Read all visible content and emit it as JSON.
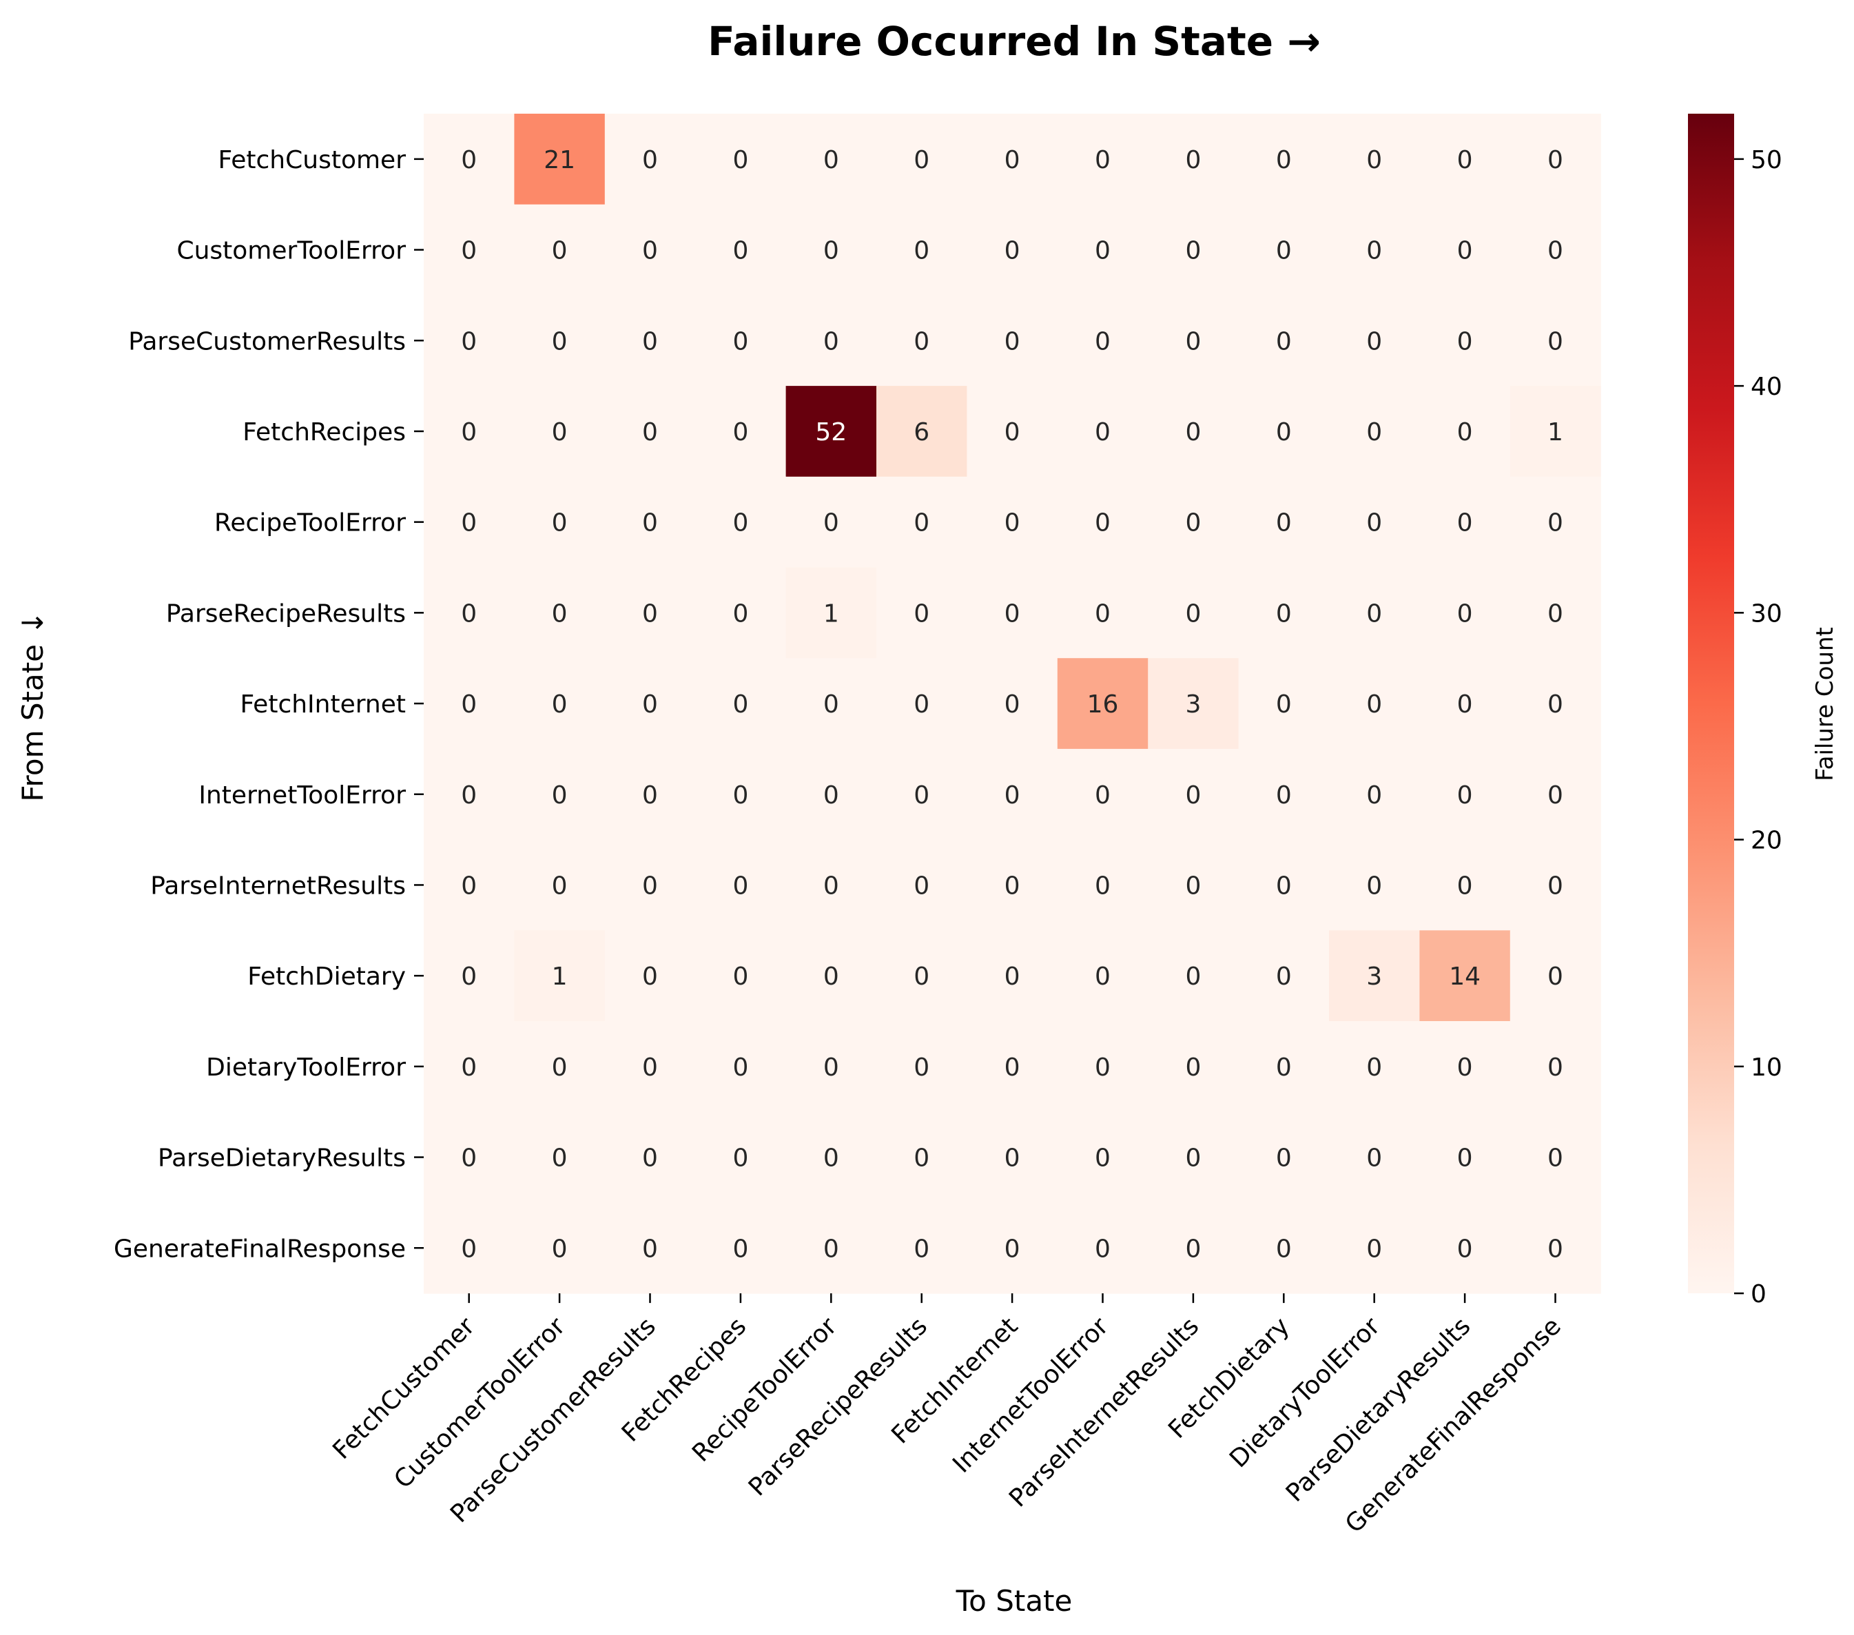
{
  "chart_data": {
    "type": "heatmap",
    "title": "Failure Occurred In State →",
    "xlabel": "To State",
    "ylabel": "From State ↓",
    "colorbar_label": "Failure Count",
    "colorbar_ticks": [
      0,
      10,
      20,
      30,
      40,
      50
    ],
    "value_range": [
      0,
      52
    ],
    "colormap": "Reds",
    "colormap_stops": [
      "#fff5f0",
      "#fee0d2",
      "#fcbba1",
      "#fc9272",
      "#fb6a4a",
      "#ef3b2c",
      "#cb181d",
      "#a50f15",
      "#67000d"
    ],
    "x_categories": [
      "FetchCustomer",
      "CustomerToolError",
      "ParseCustomerResults",
      "FetchRecipes",
      "RecipeToolError",
      "ParseRecipeResults",
      "FetchInternet",
      "InternetToolError",
      "ParseInternetResults",
      "FetchDietary",
      "DietaryToolError",
      "ParseDietaryResults",
      "GenerateFinalResponse"
    ],
    "y_categories": [
      "FetchCustomer",
      "CustomerToolError",
      "ParseCustomerResults",
      "FetchRecipes",
      "RecipeToolError",
      "ParseRecipeResults",
      "FetchInternet",
      "InternetToolError",
      "ParseInternetResults",
      "FetchDietary",
      "DietaryToolError",
      "ParseDietaryResults",
      "GenerateFinalResponse"
    ],
    "values": [
      [
        0,
        21,
        0,
        0,
        0,
        0,
        0,
        0,
        0,
        0,
        0,
        0,
        0
      ],
      [
        0,
        0,
        0,
        0,
        0,
        0,
        0,
        0,
        0,
        0,
        0,
        0,
        0
      ],
      [
        0,
        0,
        0,
        0,
        0,
        0,
        0,
        0,
        0,
        0,
        0,
        0,
        0
      ],
      [
        0,
        0,
        0,
        0,
        52,
        6,
        0,
        0,
        0,
        0,
        0,
        0,
        1
      ],
      [
        0,
        0,
        0,
        0,
        0,
        0,
        0,
        0,
        0,
        0,
        0,
        0,
        0
      ],
      [
        0,
        0,
        0,
        0,
        1,
        0,
        0,
        0,
        0,
        0,
        0,
        0,
        0
      ],
      [
        0,
        0,
        0,
        0,
        0,
        0,
        0,
        16,
        3,
        0,
        0,
        0,
        0
      ],
      [
        0,
        0,
        0,
        0,
        0,
        0,
        0,
        0,
        0,
        0,
        0,
        0,
        0
      ],
      [
        0,
        0,
        0,
        0,
        0,
        0,
        0,
        0,
        0,
        0,
        0,
        0,
        0
      ],
      [
        0,
        1,
        0,
        0,
        0,
        0,
        0,
        0,
        0,
        0,
        3,
        14,
        0
      ],
      [
        0,
        0,
        0,
        0,
        0,
        0,
        0,
        0,
        0,
        0,
        0,
        0,
        0
      ],
      [
        0,
        0,
        0,
        0,
        0,
        0,
        0,
        0,
        0,
        0,
        0,
        0,
        0
      ],
      [
        0,
        0,
        0,
        0,
        0,
        0,
        0,
        0,
        0,
        0,
        0,
        0,
        0
      ]
    ]
  }
}
